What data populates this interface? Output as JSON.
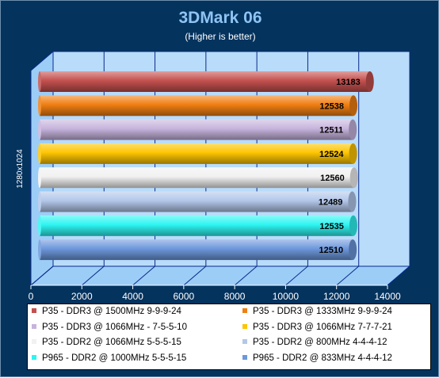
{
  "chart_data": {
    "type": "bar",
    "orientation": "horizontal",
    "title": "3DMark 06",
    "subtitle": "(Higher is better)",
    "ylabel": "1280x1024",
    "xlim": [
      0,
      14000
    ],
    "xticks": [
      "0",
      "2000",
      "4000",
      "6000",
      "8000",
      "10000",
      "12000",
      "14000"
    ],
    "grid": true,
    "legend_position": "bottom",
    "series": [
      {
        "name": "P35 - DDR3 @ 1500MHz 9-9-9-24",
        "value": 13183,
        "label": "13183",
        "color": "#c4504e"
      },
      {
        "name": "P35 - DDR3 @ 1333MHz 9-9-9-24",
        "value": 12538,
        "label": "12538",
        "color": "#f07f12"
      },
      {
        "name": "P35 - DDR3 @ 1066MHz - 7-5-5-10",
        "value": 12511,
        "label": "12511",
        "color": "#c7b4dd"
      },
      {
        "name": "P35 - DDR3 @ 1066MHz 7-7-7-21",
        "value": 12524,
        "label": "12524",
        "color": "#fec500"
      },
      {
        "name": "P35 - DDR2 @ 1066MHz 5-5-5-15",
        "value": 12560,
        "label": "12560",
        "color": "#f1f1f1"
      },
      {
        "name": "P35 - DDR2 @ 800MHz 4-4-4-12",
        "value": 12489,
        "label": "12489",
        "color": "#b3c7ea"
      },
      {
        "name": "P965 - DDR2 @ 1000MHz 5-5-5-15",
        "value": 12535,
        "label": "12535",
        "color": "#2ef5f2"
      },
      {
        "name": "P965 - DDR2 @ 833MHz 4-4-4-12",
        "value": 12510,
        "label": "12510",
        "color": "#6d98dc"
      }
    ]
  },
  "colors": {
    "background": "#04335e",
    "plot_wall": "#b9dcfb",
    "plot_floor": "#9ccdf7",
    "grid": "#0a2a8a",
    "title": "#8ec3f3"
  }
}
